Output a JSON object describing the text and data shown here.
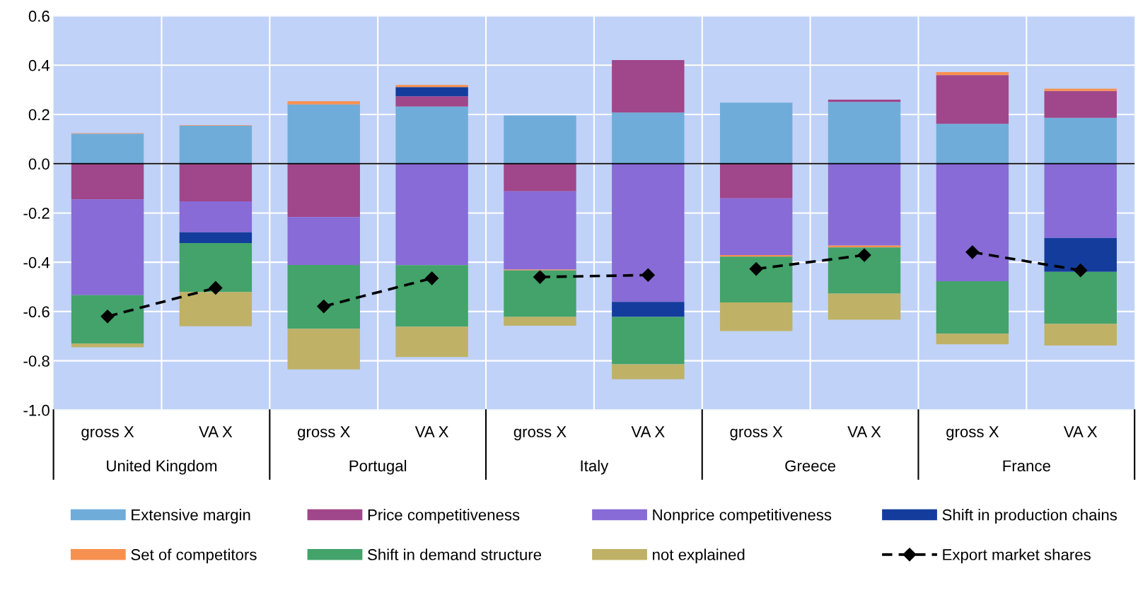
{
  "chart_data": {
    "type": "bar",
    "stacked": true,
    "categories": [
      "gross X",
      "VA X",
      "gross X",
      "VA X",
      "gross X",
      "VA X",
      "gross X",
      "VA X",
      "gross X",
      "VA X"
    ],
    "annotations": [
      "United Kingdom",
      "Portugal",
      "Italy",
      "Greece",
      "France"
    ],
    "series": [
      {
        "name": "Extensive margin",
        "color": "#70acd9",
        "values": [
          0.122,
          0.154,
          0.241,
          0.232,
          0.196,
          0.208,
          0.248,
          0.251,
          0.162,
          0.186
        ]
      },
      {
        "name": "Price competitiveness",
        "color": "#a0468a",
        "values": [
          -0.145,
          -0.153,
          -0.217,
          0.042,
          -0.112,
          0.213,
          -0.141,
          0.009,
          0.198,
          0.109
        ]
      },
      {
        "name": "Nonprice competitiveness",
        "color": "#886bd6",
        "values": [
          -0.389,
          -0.125,
          -0.194,
          -0.412,
          -0.318,
          -0.561,
          -0.23,
          -0.332,
          -0.477,
          -0.301
        ]
      },
      {
        "name": "Shift in production chains",
        "color": "#143c9c",
        "values": [
          0,
          -0.044,
          0,
          0.037,
          0,
          -0.061,
          0,
          0,
          0,
          -0.138
        ]
      },
      {
        "name": "Set of competitors",
        "color": "#f79150",
        "values": [
          0.002,
          0.002,
          0.013,
          0.009,
          -0.003,
          0,
          -0.006,
          -0.008,
          0.012,
          0.01
        ]
      },
      {
        "name": "Shift in demand structure",
        "color": "#43a36a",
        "values": [
          -0.196,
          -0.199,
          -0.259,
          -0.249,
          -0.189,
          -0.192,
          -0.186,
          -0.187,
          -0.213,
          -0.211
        ]
      },
      {
        "name": "not explained",
        "color": "#bfb166",
        "values": [
          -0.015,
          -0.139,
          -0.165,
          -0.124,
          -0.036,
          -0.061,
          -0.116,
          -0.106,
          -0.043,
          -0.088
        ]
      },
      {
        "name": "Export market shares",
        "type": "line",
        "color": "#000000",
        "marker": "diamond",
        "line_style": "dashed",
        "values": [
          -0.62,
          -0.504,
          -0.579,
          -0.465,
          -0.46,
          -0.452,
          -0.427,
          -0.371,
          -0.359,
          -0.433
        ]
      }
    ],
    "ylim": [
      -1.0,
      0.6
    ],
    "yticks": [
      {
        "value": -1.0,
        "label": "-1.0"
      },
      -0.8,
      -0.6,
      -0.4,
      -0.2,
      {
        "value": 0,
        "label": "0.0"
      },
      0.2,
      0.4,
      0.6
    ],
    "grid": true,
    "legend": "bottom",
    "ref_lines": [
      {
        "axis": "y",
        "value": 0,
        "color": "#000000",
        "line_style": "solid"
      }
    ]
  }
}
